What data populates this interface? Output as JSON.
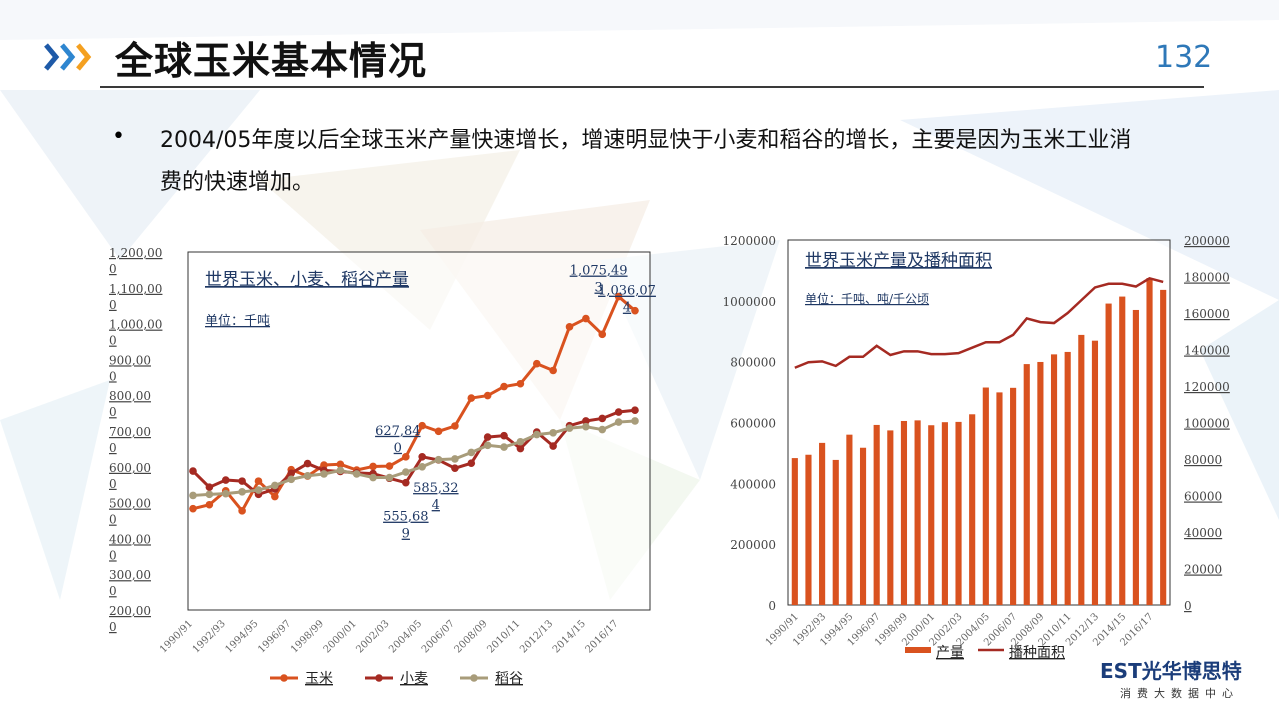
{
  "header": {
    "title": "全球玉米基本情况",
    "page_number": "132"
  },
  "bullet": {
    "marker": "•",
    "text": "2004/05年度以后全球玉米产量快速增长，增速明显快于小麦和稻谷的增长，主要是因为玉米工业消费的快速增加。"
  },
  "logo": {
    "main": "EST光华博思特",
    "sub": "消费大数据中心"
  },
  "chart_data": [
    {
      "type": "line",
      "title": "世界玉米、小麦、稻谷产量",
      "subtitle": "单位：千吨",
      "x": [
        "1990/91",
        "1991/92",
        "1992/93",
        "1993/94",
        "1994/95",
        "1995/96",
        "1996/97",
        "1997/98",
        "1998/99",
        "1999/00",
        "2000/01",
        "2001/02",
        "2002/03",
        "2003/04",
        "2004/05",
        "2005/06",
        "2006/07",
        "2007/08",
        "2008/09",
        "2009/10",
        "2010/11",
        "2011/12",
        "2012/13",
        "2013/14",
        "2014/15",
        "2015/16",
        "2016/17",
        "2017/18"
      ],
      "x_tick_labels": [
        "1990/91",
        "1992/93",
        "1994/95",
        "1996/97",
        "1998/99",
        "2000/01",
        "2002/03",
        "2004/05",
        "2006/07",
        "2008/09",
        "2010/11",
        "2012/13",
        "2014/15",
        "2016/17"
      ],
      "y_tick_labels": [
        "1,200,000",
        "1,100,000",
        "1,000,000",
        "900,000",
        "800,000",
        "700,000",
        "600,000",
        "500,000",
        "400,000",
        "300,000",
        "200,000"
      ],
      "ylim": [
        200000,
        1200000
      ],
      "series": [
        {
          "name": "玉米",
          "color": "#d9521f",
          "values": [
            483000,
            494000,
            533000,
            477000,
            560000,
            517000,
            592000,
            574000,
            605000,
            607000,
            591000,
            601000,
            602000,
            627840,
            715000,
            699000,
            714000,
            792000,
            799000,
            824000,
            832000,
            888000,
            869000,
            991000,
            1014000,
            970000,
            1075493,
            1036074
          ]
        },
        {
          "name": "小麦",
          "color": "#a52a22",
          "values": [
            588000,
            543000,
            563000,
            560000,
            523000,
            538000,
            582000,
            609000,
            590000,
            587000,
            583000,
            581000,
            568000,
            555689,
            628000,
            619000,
            596000,
            610000,
            683000,
            687000,
            651000,
            697000,
            658000,
            715000,
            728000,
            735000,
            753000,
            758000
          ]
        },
        {
          "name": "稻谷",
          "color": "#a89c7a",
          "values": [
            520000,
            523000,
            525000,
            530000,
            535000,
            548000,
            565000,
            575000,
            580000,
            590000,
            580000,
            570000,
            570000,
            585324,
            600000,
            620000,
            622000,
            640000,
            660000,
            655000,
            670000,
            690000,
            695000,
            708000,
            712000,
            704000,
            725000,
            728000
          ]
        }
      ],
      "data_labels": [
        {
          "series": "玉米",
          "x": "2003/04",
          "text": "627,840"
        },
        {
          "series": "稻谷",
          "x": "2003/04",
          "text": "585,324"
        },
        {
          "series": "小麦",
          "x": "2003/04",
          "text": "555,689"
        },
        {
          "series": "玉米",
          "x": "2016/17",
          "text": "1,075,493"
        },
        {
          "series": "玉米",
          "x": "2017/18",
          "text": "1,036,074"
        }
      ],
      "legend": "bottom"
    },
    {
      "type": "bar",
      "title": "世界玉米产量及播种面积",
      "subtitle": "单位：千吨、吨/千公顷",
      "x": [
        "1990/91",
        "1991/92",
        "1992/93",
        "1993/94",
        "1994/95",
        "1995/96",
        "1996/97",
        "1997/98",
        "1998/99",
        "1999/00",
        "2000/01",
        "2001/02",
        "2002/03",
        "2003/04",
        "2004/05",
        "2005/06",
        "2006/07",
        "2007/08",
        "2008/09",
        "2009/10",
        "2010/11",
        "2011/12",
        "2012/13",
        "2013/14",
        "2014/15",
        "2015/16",
        "2016/17",
        "2017/18"
      ],
      "x_tick_labels": [
        "1990/91",
        "1992/93",
        "1994/95",
        "1996/97",
        "1998/99",
        "2000/01",
        "2002/03",
        "2004/05",
        "2006/07",
        "2008/09",
        "2010/11",
        "2012/13",
        "2014/15",
        "2016/17"
      ],
      "y_tick_labels": [
        "1200000",
        "1000000",
        "800000",
        "600000",
        "400000",
        "200000",
        "0"
      ],
      "y2_tick_labels": [
        "200000",
        "180000",
        "160000",
        "140000",
        "120000",
        "100000",
        "80000",
        "60000",
        "40000",
        "20000",
        "0"
      ],
      "ylim": [
        0,
        1200000
      ],
      "y2lim": [
        0,
        200000
      ],
      "series": [
        {
          "name": "产量",
          "color": "#d9521f",
          "axis": "left",
          "values": [
            483000,
            494000,
            533000,
            477000,
            560000,
            517000,
            592000,
            574000,
            605000,
            607000,
            591000,
            601000,
            602000,
            627000,
            715000,
            699000,
            714000,
            792000,
            799000,
            824000,
            832000,
            888000,
            869000,
            991000,
            1014000,
            970000,
            1075000,
            1036000
          ]
        },
        {
          "name": "播种面积",
          "color": "#a52a22",
          "axis": "right",
          "type": "line",
          "values": [
            130000,
            133000,
            133500,
            131000,
            136000,
            136000,
            142000,
            137000,
            139000,
            139000,
            137500,
            137500,
            138000,
            141000,
            144000,
            144000,
            148000,
            157000,
            155000,
            154500,
            160000,
            167000,
            174000,
            176000,
            176000,
            174500,
            179000,
            177000
          ]
        }
      ],
      "legend": "bottom"
    }
  ]
}
